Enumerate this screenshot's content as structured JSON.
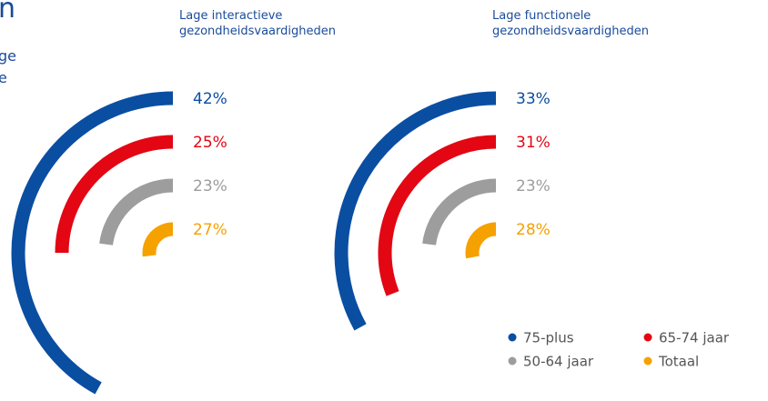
{
  "header": {
    "title": "n",
    "subtitle_lines": [
      "ge",
      "e"
    ]
  },
  "chart_data": {
    "type": "radial_bar",
    "categories": [
      "Lage interactieve gezondheidsvaardigheden",
      "Lage functionele gezondheidsvaardigheden"
    ],
    "scale_max": 100,
    "series": [
      {
        "name": "75-plus",
        "color": "#0a4ea2",
        "values": [
          42,
          33
        ],
        "value_labels": [
          "42%",
          "33%"
        ]
      },
      {
        "name": "65-74 jaar",
        "color": "#e30613",
        "values": [
          25,
          31
        ],
        "value_labels": [
          "25%",
          "31%"
        ]
      },
      {
        "name": "50-64 jaar",
        "color": "#9d9d9e",
        "values": [
          23,
          23
        ],
        "value_labels": [
          "23%",
          "23%"
        ]
      },
      {
        "name": "Totaal",
        "color": "#f5a100",
        "values": [
          27,
          28
        ],
        "value_labels": [
          "27%",
          "28%"
        ]
      }
    ]
  }
}
